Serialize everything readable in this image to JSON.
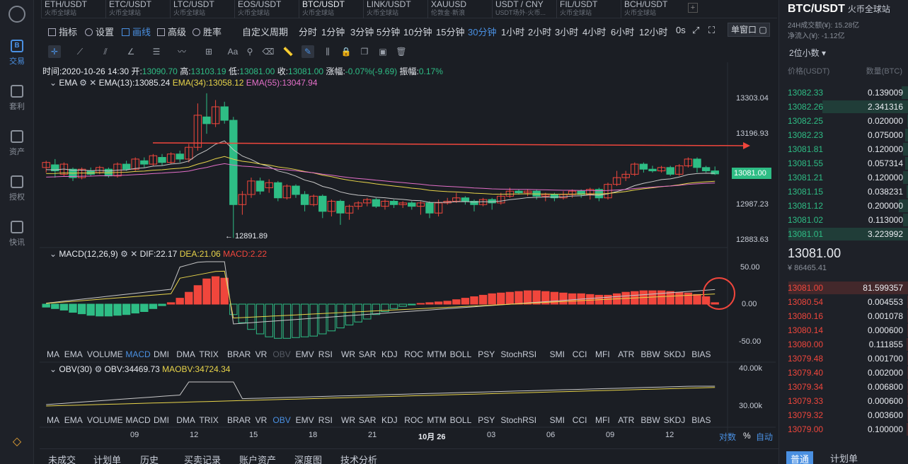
{
  "nav": [
    {
      "label": "交易",
      "icon": "B"
    },
    {
      "label": "套利",
      "icon": "套"
    },
    {
      "label": "资产",
      "icon": "资"
    },
    {
      "label": "授权",
      "icon": "授"
    },
    {
      "label": "快讯",
      "icon": "快"
    }
  ],
  "tickers": [
    {
      "sym": "ETH/USDT",
      "sub": "火币全球站"
    },
    {
      "sym": "ETC/USDT",
      "sub": "火币全球站"
    },
    {
      "sym": "LTC/USDT",
      "sub": "火币全球站"
    },
    {
      "sym": "EOS/USDT",
      "sub": "火币全球站"
    },
    {
      "sym": "BTC/USDT",
      "sub": "火币全球站"
    },
    {
      "sym": "LINK/USDT",
      "sub": "火币全球站"
    },
    {
      "sym": "XAUUSD",
      "sub": "伦敦金·新浪"
    },
    {
      "sym": "USDT / CNY",
      "sub": "USDT场外·火币..."
    },
    {
      "sym": "FIL/USDT",
      "sub": "火币全球站"
    },
    {
      "sym": "BCH/USDT",
      "sub": "火币全球站"
    }
  ],
  "toolbar": {
    "indicator": "指标",
    "settings": "设置",
    "draw": "画线",
    "advanced": "高级",
    "win": "胜率",
    "custom_period": "自定义周期",
    "periods": [
      "分时",
      "1分钟",
      "3分钟",
      "5分钟",
      "10分钟",
      "15分钟",
      "30分钟",
      "1小时",
      "2小时",
      "3小时",
      "4小时",
      "6小时",
      "12小时"
    ],
    "active_period": "30分钟",
    "zero_s": "0s",
    "window": "单窗口"
  },
  "ohlc": {
    "time": "时间:2020-10-26 14:30",
    "open_label": "开:",
    "open": "13090.70",
    "high_label": "高:",
    "high": "13103.19",
    "low_label": "低:",
    "low": "13081.00",
    "close_label": "收:",
    "close": "13081.00",
    "chg_label": "涨幅:",
    "chg": "-0.07%(-9.69)",
    "amp_label": "振幅:",
    "amp": "0.17%"
  },
  "ema": {
    "name": "EMA",
    "ema13": "EMA(13):13085.24",
    "ema34": "EMA(34):13058.12",
    "ema55": "EMA(55):13047.94"
  },
  "macd": {
    "name": "MACD(12,26,9)",
    "dif": "DIF:22.17",
    "dea": "DEA:21.06",
    "macd": "MACD:2.22"
  },
  "obv": {
    "name": "OBV(30)",
    "obv": "OBV:34469.73",
    "maobv": "MAOBV:34724.34"
  },
  "price_axis": [
    "13303.04",
    "13196.93",
    "13081.00",
    "12987.23",
    "12883.63"
  ],
  "current_price_tag": "13081.00",
  "low_marker": "← 12891.89",
  "macd_axis": [
    "50.00",
    "0.00",
    "-50.00"
  ],
  "obv_axis": [
    "40.00k",
    "30.00k"
  ],
  "indicator_tabs": [
    "MA",
    "EMA",
    "VOLUME",
    "MACD",
    "DMI",
    "DMA",
    "TRIX",
    "BRAR",
    "VR",
    "OBV",
    "EMV",
    "RSI",
    "WR",
    "SAR",
    "KDJ",
    "ROC",
    "MTM",
    "BOLL",
    "PSY",
    "StochRSI",
    "SMI",
    "CCI",
    "MFI",
    "ATR",
    "BBW",
    "SKDJ",
    "BIAS"
  ],
  "time_axis": [
    "09",
    "12",
    "15",
    "18",
    "21",
    "10月 26",
    "03",
    "06",
    "09",
    "12"
  ],
  "axis_mode": {
    "log": "对数",
    "pct": "%",
    "auto": "自动"
  },
  "bottom_tabs": [
    "未成交",
    "计划单",
    "历史",
    "买卖记录",
    "账户资产",
    "深度图",
    "技术分析"
  ],
  "right": {
    "title": "BTC/USDT",
    "subtitle": "火币全球站",
    "vol24": "24H成交额(¥): 15.28亿",
    "inflow": "净流入(¥): -1.12亿",
    "precision": "2位小数",
    "col_price": "价格(USDT)",
    "col_qty": "数量(BTC)",
    "bids_top": [
      {
        "p": "13082.33",
        "q": "0.139009",
        "w": 0.06
      },
      {
        "p": "13082.26",
        "q": "2.341316",
        "w": 0.72
      },
      {
        "p": "13082.25",
        "q": "0.020000",
        "w": 0.01
      },
      {
        "p": "13082.23",
        "q": "0.075000",
        "w": 0.03
      },
      {
        "p": "13081.81",
        "q": "0.120000",
        "w": 0.05
      },
      {
        "p": "13081.55",
        "q": "0.057314",
        "w": 0.03
      },
      {
        "p": "13081.21",
        "q": "0.120000",
        "w": 0.05
      },
      {
        "p": "13081.15",
        "q": "0.038231",
        "w": 0.02
      },
      {
        "p": "13081.12",
        "q": "0.200000",
        "w": 0.08
      },
      {
        "p": "13081.02",
        "q": "0.113000",
        "w": 0.05
      },
      {
        "p": "13081.01",
        "q": "3.223992",
        "w": 1.0
      }
    ],
    "last": "13081.00",
    "last_cny": "¥ 86465.41",
    "asks": [
      {
        "p": "13081.00",
        "q": "81.599357",
        "w": 1.0
      },
      {
        "p": "13080.54",
        "q": "0.004553",
        "w": 0.01
      },
      {
        "p": "13080.16",
        "q": "0.001078",
        "w": 0.01
      },
      {
        "p": "13080.14",
        "q": "0.000600",
        "w": 0.01
      },
      {
        "p": "13080.00",
        "q": "0.111855",
        "w": 0.02
      },
      {
        "p": "13079.48",
        "q": "0.001700",
        "w": 0.01
      },
      {
        "p": "13079.40",
        "q": "0.002000",
        "w": 0.01
      },
      {
        "p": "13079.34",
        "q": "0.006800",
        "w": 0.01
      },
      {
        "p": "13079.33",
        "q": "0.000600",
        "w": 0.01
      },
      {
        "p": "13079.32",
        "q": "0.003600",
        "w": 0.01
      },
      {
        "p": "13079.00",
        "q": "0.100000",
        "w": 0.02
      }
    ],
    "tab_normal": "普通",
    "tab_plan": "计划单"
  },
  "colors": {
    "up": "#2ebd85",
    "down": "#f0463c",
    "accent": "#4a90e2",
    "ema13": "#c8c8c8",
    "ema34": "#e8d44a",
    "ema55": "#e36fc8"
  }
}
